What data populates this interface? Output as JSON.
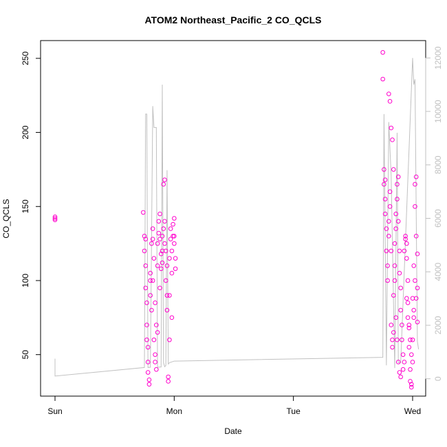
{
  "chart_data": {
    "type": "scatter",
    "title": "ATOM2 Northeast_Pacific_2 CO_QCLS",
    "xlabel": "Date",
    "ylabel": "CO_QCLS",
    "x_ticks": [
      "Sun",
      "Mon",
      "Tue",
      "Wed"
    ],
    "xlim": [
      0.0,
      3.06
    ],
    "ylim": [
      22,
      262
    ],
    "y_ticks": [
      50,
      100,
      150,
      200,
      250
    ],
    "y2lim": [
      -650,
      12650
    ],
    "y2_ticks": [
      0,
      2000,
      4000,
      6000,
      8000,
      10000,
      12000
    ],
    "y2_color": "#c0c0c0",
    "grid": false,
    "series": [
      {
        "kind": "points",
        "color": "#ff00cc",
        "points": [
          [
            0.0,
            143
          ],
          [
            0.0,
            141
          ],
          [
            0.0,
            142
          ],
          [
            0.74,
            146
          ],
          [
            0.75,
            130
          ],
          [
            0.75,
            120
          ],
          [
            0.76,
            110
          ],
          [
            0.76,
            95
          ],
          [
            0.77,
            85
          ],
          [
            0.77,
            70
          ],
          [
            0.77,
            60
          ],
          [
            0.78,
            45
          ],
          [
            0.78,
            38
          ],
          [
            0.79,
            30
          ],
          [
            0.79,
            33
          ],
          [
            0.8,
            100
          ],
          [
            0.8,
            90
          ],
          [
            0.81,
            80
          ],
          [
            0.81,
            125
          ],
          [
            0.82,
            135
          ],
          [
            0.82,
            128
          ],
          [
            0.83,
            115
          ],
          [
            0.83,
            60
          ],
          [
            0.84,
            50
          ],
          [
            0.84,
            45
          ],
          [
            0.85,
            40
          ],
          [
            0.85,
            70
          ],
          [
            0.86,
            110
          ],
          [
            0.86,
            125
          ],
          [
            0.87,
            132
          ],
          [
            0.87,
            140
          ],
          [
            0.88,
            145
          ],
          [
            0.88,
            128
          ],
          [
            0.89,
            118
          ],
          [
            0.89,
            108
          ],
          [
            0.9,
            120
          ],
          [
            0.9,
            130
          ],
          [
            0.91,
            135
          ],
          [
            0.91,
            165
          ],
          [
            0.92,
            168
          ],
          [
            0.92,
            140
          ],
          [
            0.93,
            120
          ],
          [
            0.93,
            100
          ],
          [
            0.94,
            90
          ],
          [
            0.94,
            80
          ],
          [
            0.95,
            35
          ],
          [
            0.95,
            32
          ],
          [
            0.96,
            60
          ],
          [
            0.96,
            115
          ],
          [
            0.97,
            128
          ],
          [
            0.97,
            135
          ],
          [
            0.98,
            120
          ],
          [
            0.98,
            105
          ],
          [
            0.99,
            130
          ],
          [
            0.99,
            138
          ],
          [
            1.0,
            142
          ],
          [
            1.0,
            125
          ],
          [
            1.01,
            115
          ],
          [
            1.01,
            108
          ],
          [
            0.76,
            128
          ],
          [
            0.78,
            55
          ],
          [
            0.8,
            105
          ],
          [
            0.82,
            100
          ],
          [
            0.84,
            85
          ],
          [
            0.86,
            65
          ],
          [
            0.88,
            95
          ],
          [
            0.9,
            112
          ],
          [
            0.92,
            125
          ],
          [
            0.94,
            110
          ],
          [
            0.96,
            90
          ],
          [
            0.98,
            75
          ],
          [
            1.0,
            130
          ],
          [
            2.75,
            254
          ],
          [
            2.75,
            236
          ],
          [
            2.76,
            175
          ],
          [
            2.76,
            165
          ],
          [
            2.77,
            155
          ],
          [
            2.77,
            145
          ],
          [
            2.78,
            135
          ],
          [
            2.78,
            120
          ],
          [
            2.79,
            110
          ],
          [
            2.79,
            100
          ],
          [
            2.8,
            130
          ],
          [
            2.8,
            140
          ],
          [
            2.81,
            160
          ],
          [
            2.81,
            150
          ],
          [
            2.82,
            120
          ],
          [
            2.82,
            70
          ],
          [
            2.83,
            60
          ],
          [
            2.83,
            55
          ],
          [
            2.84,
            65
          ],
          [
            2.84,
            90
          ],
          [
            2.85,
            110
          ],
          [
            2.85,
            125
          ],
          [
            2.86,
            135
          ],
          [
            2.86,
            145
          ],
          [
            2.87,
            155
          ],
          [
            2.87,
            165
          ],
          [
            2.88,
            170
          ],
          [
            2.88,
            140
          ],
          [
            2.89,
            120
          ],
          [
            2.89,
            105
          ],
          [
            2.9,
            95
          ],
          [
            2.9,
            80
          ],
          [
            2.91,
            70
          ],
          [
            2.91,
            60
          ],
          [
            2.92,
            50
          ],
          [
            2.92,
            40
          ],
          [
            2.93,
            45
          ],
          [
            2.93,
            120
          ],
          [
            2.94,
            128
          ],
          [
            2.94,
            130
          ],
          [
            2.95,
            125
          ],
          [
            2.95,
            115
          ],
          [
            2.96,
            100
          ],
          [
            2.96,
            85
          ],
          [
            2.97,
            70
          ],
          [
            2.97,
            55
          ],
          [
            2.98,
            40
          ],
          [
            2.98,
            32
          ],
          [
            2.99,
            30
          ],
          [
            2.99,
            28
          ],
          [
            3.0,
            45
          ],
          [
            3.0,
            60
          ],
          [
            3.01,
            80
          ],
          [
            3.01,
            110
          ],
          [
            3.02,
            150
          ],
          [
            3.02,
            165
          ],
          [
            3.03,
            170
          ],
          [
            3.03,
            130
          ],
          [
            3.04,
            118
          ],
          [
            3.04,
            95
          ],
          [
            2.8,
            226
          ],
          [
            2.81,
            221
          ],
          [
            2.82,
            203
          ],
          [
            2.83,
            195
          ],
          [
            2.84,
            175
          ],
          [
            2.77,
            168
          ],
          [
            2.85,
            100
          ],
          [
            2.86,
            75
          ],
          [
            2.87,
            60
          ],
          [
            2.88,
            45
          ],
          [
            2.89,
            38
          ],
          [
            2.9,
            35
          ],
          [
            2.95,
            88
          ],
          [
            2.96,
            75
          ],
          [
            2.97,
            68
          ],
          [
            2.98,
            60
          ],
          [
            2.99,
            50
          ],
          [
            3.0,
            88
          ],
          [
            3.01,
            75
          ],
          [
            3.02,
            100
          ],
          [
            3.03,
            88
          ],
          [
            3.04,
            72
          ]
        ]
      },
      {
        "kind": "line",
        "axis": "y2",
        "color": "#c0c0c0",
        "points": [
          [
            0.0,
            750
          ],
          [
            0.0,
            100
          ],
          [
            0.75,
            420
          ],
          [
            0.76,
            9900
          ],
          [
            0.77,
            9900
          ],
          [
            0.78,
            420
          ],
          [
            0.8,
            430
          ],
          [
            0.82,
            10200
          ],
          [
            0.83,
            9400
          ],
          [
            0.85,
            9400
          ],
          [
            0.86,
            430
          ],
          [
            0.89,
            440
          ],
          [
            0.9,
            11000
          ],
          [
            0.91,
            600
          ],
          [
            0.92,
            450
          ],
          [
            0.93,
            500
          ],
          [
            0.94,
            7800
          ],
          [
            0.95,
            550
          ],
          [
            0.96,
            600
          ],
          [
            1.0,
            660
          ],
          [
            2.75,
            800
          ],
          [
            2.76,
            9900
          ],
          [
            2.78,
            500
          ],
          [
            2.8,
            9600
          ],
          [
            2.82,
            7600
          ],
          [
            2.85,
            400
          ],
          [
            2.87,
            9200
          ],
          [
            2.88,
            600
          ],
          [
            2.9,
            600
          ],
          [
            3.0,
            12000
          ],
          [
            3.01,
            11000
          ],
          [
            3.02,
            11200
          ],
          [
            3.04,
            1400
          ],
          [
            3.05,
            1100
          ]
        ]
      }
    ]
  }
}
